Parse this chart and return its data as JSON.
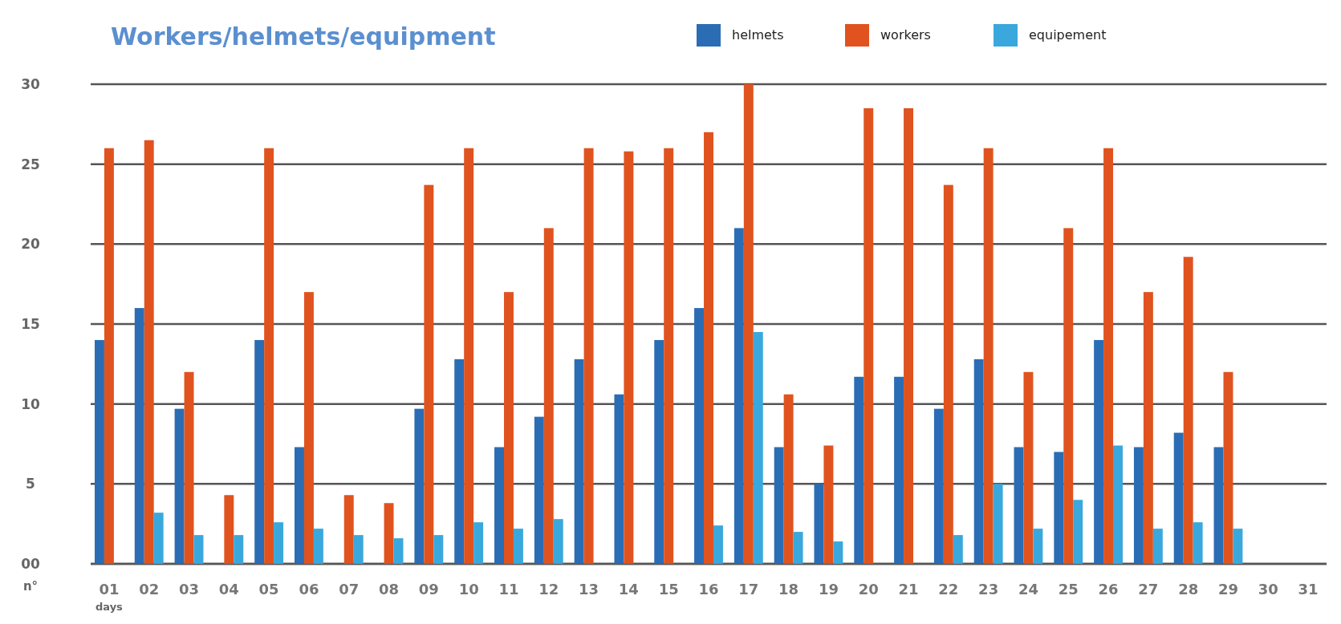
{
  "chart_data": {
    "type": "bar",
    "title": "Workers/helmets/equipment",
    "xlabel": "days",
    "ylabel": "n°",
    "categories": [
      "01",
      "02",
      "03",
      "04",
      "05",
      "06",
      "07",
      "08",
      "09",
      "10",
      "11",
      "12",
      "13",
      "14",
      "15",
      "16",
      "17",
      "18",
      "19",
      "20",
      "21",
      "22",
      "23",
      "24",
      "25",
      "26",
      "27",
      "28",
      "29",
      "30",
      "31"
    ],
    "series": [
      {
        "name": "helmets",
        "color": "#2a6db5",
        "values": [
          14,
          16,
          9.7,
          null,
          14,
          7.3,
          null,
          null,
          9.7,
          12.8,
          7.3,
          9.2,
          12.8,
          10.6,
          14,
          16,
          21,
          7.3,
          5,
          11.7,
          11.7,
          9.7,
          12.8,
          7.3,
          7,
          14,
          7.3,
          8.2,
          7.3,
          null,
          null
        ]
      },
      {
        "name": "workers",
        "color": "#e0531f",
        "values": [
          26,
          26.5,
          12,
          4.3,
          26,
          17,
          4.3,
          3.8,
          23.7,
          26,
          17,
          21,
          26,
          25.8,
          26,
          27,
          30,
          10.6,
          7.4,
          28.5,
          28.5,
          23.7,
          26,
          12,
          21,
          26,
          17,
          19.2,
          12,
          null,
          null
        ]
      },
      {
        "name": "equipement",
        "color": "#3aa8dc",
        "values": [
          null,
          3.2,
          1.8,
          1.8,
          2.6,
          2.2,
          1.8,
          1.6,
          1.8,
          2.6,
          2.2,
          2.8,
          null,
          null,
          null,
          2.4,
          14.5,
          2,
          1.4,
          null,
          null,
          1.8,
          5,
          2.2,
          4,
          7.4,
          2.2,
          2.6,
          2.2,
          null,
          null
        ]
      }
    ],
    "ylim": [
      0,
      30
    ],
    "yticks": [
      {
        "value": 0,
        "label": "00"
      },
      5,
      10,
      15,
      20,
      25,
      30
    ],
    "grid": "y",
    "legend": "top right"
  }
}
